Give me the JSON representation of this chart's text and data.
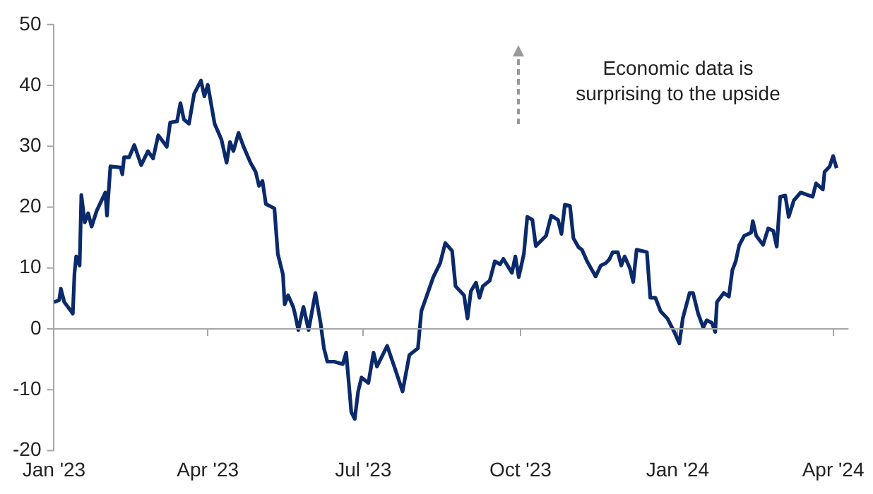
{
  "chart_data": {
    "type": "line",
    "annotations": [
      "Economic data is surprising to the upside"
    ],
    "x": [
      "2023-01-01",
      "2023-01-04",
      "2023-01-05",
      "2023-01-07",
      "2023-01-11",
      "2023-01-12",
      "2023-01-13",
      "2023-01-14",
      "2023-01-16",
      "2023-01-17",
      "2023-01-19",
      "2023-01-21",
      "2023-01-23",
      "2023-01-26",
      "2023-01-31",
      "2023-02-01",
      "2023-02-03",
      "2023-02-09",
      "2023-02-10",
      "2023-02-11",
      "2023-02-14",
      "2023-02-17",
      "2023-02-21",
      "2023-02-25",
      "2023-02-28",
      "2023-03-03",
      "2023-03-06",
      "2023-03-08",
      "2023-03-10",
      "2023-03-14",
      "2023-03-16",
      "2023-03-18",
      "2023-03-21",
      "2023-03-24",
      "2023-03-28",
      "2023-03-30",
      "2023-04-01",
      "2023-04-05",
      "2023-04-09",
      "2023-04-12",
      "2023-04-14",
      "2023-04-16",
      "2023-04-19",
      "2023-04-22",
      "2023-04-26",
      "2023-04-29",
      "2023-05-01",
      "2023-05-03",
      "2023-05-05",
      "2023-05-10",
      "2023-05-12",
      "2023-05-15",
      "2023-05-16",
      "2023-05-18",
      "2023-05-21",
      "2023-05-22",
      "2023-05-24",
      "2023-05-27",
      "2023-05-30",
      "2023-06-03",
      "2023-06-06",
      "2023-06-08",
      "2023-06-10",
      "2023-06-14",
      "2023-06-19",
      "2023-06-21",
      "2023-06-24",
      "2023-06-26",
      "2023-06-28",
      "2023-06-30",
      "2023-07-04",
      "2023-07-07",
      "2023-07-09",
      "2023-07-15",
      "2023-07-20",
      "2023-07-24",
      "2023-07-28",
      "2023-08-02",
      "2023-08-04",
      "2023-08-11",
      "2023-08-15",
      "2023-08-18",
      "2023-08-22",
      "2023-08-24",
      "2023-08-29",
      "2023-08-31",
      "2023-09-02",
      "2023-09-05",
      "2023-09-07",
      "2023-09-09",
      "2023-09-13",
      "2023-09-16",
      "2023-09-19",
      "2023-09-21",
      "2023-09-26",
      "2023-09-28",
      "2023-09-30",
      "2023-10-03",
      "2023-10-05",
      "2023-10-08",
      "2023-10-10",
      "2023-10-16",
      "2023-10-19",
      "2023-10-23",
      "2023-10-25",
      "2023-10-27",
      "2023-10-30",
      "2023-11-01",
      "2023-11-04",
      "2023-11-06",
      "2023-11-09",
      "2023-11-12",
      "2023-11-14",
      "2023-11-17",
      "2023-11-20",
      "2023-11-22",
      "2023-11-24",
      "2023-11-27",
      "2023-11-29",
      "2023-12-01",
      "2023-12-04",
      "2023-12-06",
      "2023-12-08",
      "2023-12-14",
      "2023-12-16",
      "2023-12-19",
      "2023-12-22",
      "2023-12-26",
      "2023-12-30",
      "2024-01-02",
      "2024-01-04",
      "2024-01-08",
      "2024-01-10",
      "2024-01-13",
      "2024-01-16",
      "2024-01-18",
      "2024-01-21",
      "2024-01-23",
      "2024-01-24",
      "2024-01-28",
      "2024-01-31",
      "2024-02-02",
      "2024-02-04",
      "2024-02-06",
      "2024-02-09",
      "2024-02-13",
      "2024-02-14",
      "2024-02-16",
      "2024-02-20",
      "2024-02-23",
      "2024-02-26",
      "2024-02-28",
      "2024-03-01",
      "2024-03-04",
      "2024-03-06",
      "2024-03-09",
      "2024-03-13",
      "2024-03-17",
      "2024-03-20",
      "2024-03-22",
      "2024-03-26",
      "2024-03-27",
      "2024-03-30",
      "2024-04-01",
      "2024-04-03"
    ],
    "series": [
      {
        "color": "#0b2a6b",
        "values": [
          4.4,
          4.7,
          6.6,
          4.4,
          2.9,
          2.5,
          9.2,
          11.9,
          10.4,
          22,
          17.5,
          19,
          16.8,
          19.4,
          22.4,
          18.6,
          26.7,
          26.5,
          25.4,
          28.2,
          28.2,
          30.2,
          26.9,
          29.2,
          28,
          31.8,
          30.7,
          29.9,
          33.9,
          34.1,
          37.1,
          34.4,
          33.7,
          38.6,
          40.8,
          38.2,
          40.1,
          33.7,
          31.1,
          27.3,
          30.7,
          29.2,
          32.2,
          29.9,
          27.3,
          25.8,
          23.5,
          24.3,
          20.5,
          19.8,
          12.3,
          8.9,
          4,
          5.5,
          3.6,
          2.5,
          -0.2,
          3.6,
          -0.2,
          5.9,
          1,
          -3.2,
          -5.4,
          -5.4,
          -5.8,
          -3.9,
          -13.7,
          -14.8,
          -10.3,
          -8,
          -8.9,
          -3.9,
          -6.2,
          -2.8,
          -6.9,
          -10.3,
          -4.3,
          -3.2,
          2.9,
          8.5,
          10.8,
          14.1,
          12.8,
          7,
          5.5,
          1.7,
          6.2,
          7.6,
          5.1,
          7,
          7.9,
          11.1,
          10.6,
          11.5,
          9.2,
          11.9,
          8.5,
          12.3,
          18.4,
          17.9,
          13.6,
          15.3,
          18.6,
          17.9,
          15.6,
          20.4,
          20.2,
          14.9,
          13.4,
          13,
          11.1,
          9.6,
          8.6,
          10.4,
          10.8,
          11.4,
          12.6,
          12.6,
          10.4,
          11.9,
          10,
          7.7,
          13,
          12.6,
          5.1,
          5.1,
          2.9,
          1.7,
          -0.5,
          -2.4,
          1.7,
          5.9,
          5.9,
          2.5,
          0.2,
          1.4,
          1,
          -0.5,
          4.4,
          5.9,
          5.3,
          9.6,
          11.1,
          13.7,
          15.3,
          15.8,
          17.7,
          15.3,
          13.8,
          16.5,
          16.1,
          13.5,
          21.7,
          21.9,
          18.4,
          21.1,
          22.4,
          22,
          21.7,
          23.9,
          22.9,
          25.8,
          26.7,
          28.4,
          26.4
        ]
      }
    ],
    "xlim": [
      "2023-01-01",
      "2024-04-10"
    ],
    "ylim": [
      -20,
      50
    ],
    "xticks": [
      {
        "value": "2023-01",
        "label": "Jan '23"
      },
      {
        "value": "2023-04",
        "label": "Apr '23"
      },
      {
        "value": "2023-07",
        "label": "Jul '23"
      },
      {
        "value": "2023-10",
        "label": "Oct '23"
      },
      {
        "value": "2024-01",
        "label": "Jan '24"
      },
      {
        "value": "2024-04",
        "label": "Apr '24"
      }
    ],
    "yticks": [
      -20,
      -10,
      0,
      10,
      20,
      30,
      40,
      50
    ],
    "ref_lines": [
      {
        "axis": "y",
        "value": 0,
        "color": "#a6a6a6"
      }
    ],
    "grid": false,
    "legend": false,
    "marker": "none",
    "line_style": "solid"
  }
}
